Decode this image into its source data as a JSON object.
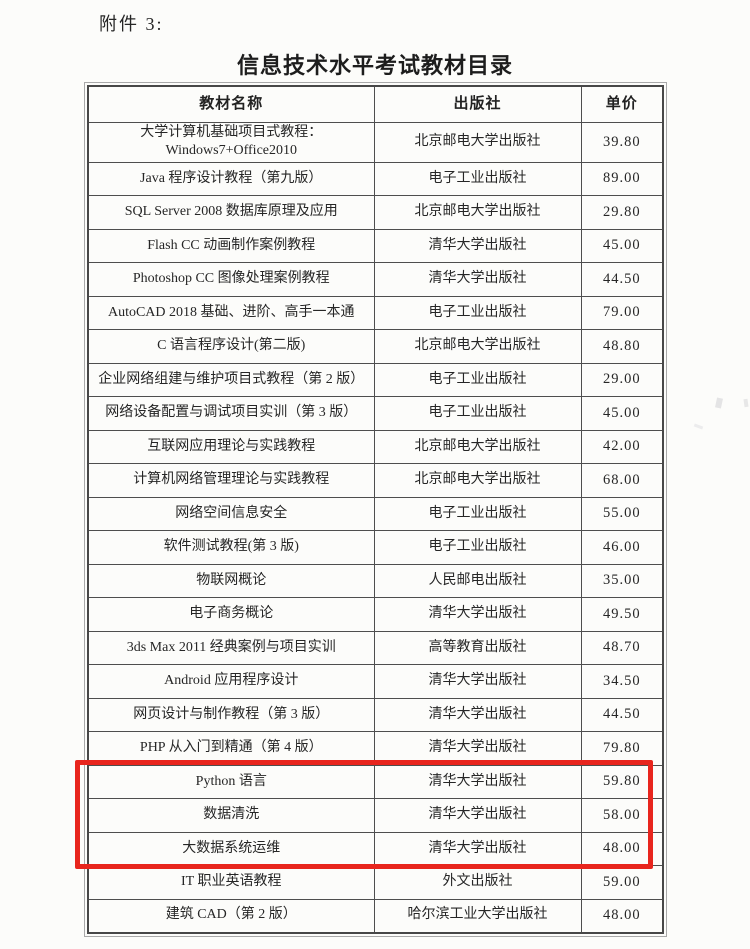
{
  "document": {
    "attachment_label": "附件 3:",
    "title": "信息技术水平考试教材目录"
  },
  "table": {
    "columns": [
      "教材名称",
      "出版社",
      "单价"
    ],
    "rows": [
      {
        "name": "大学计算机基础项目式教程：\nWindows7+Office2010",
        "publisher": "北京邮电大学出版社",
        "price": "39.80"
      },
      {
        "name": "Java 程序设计教程（第九版）",
        "publisher": "电子工业出版社",
        "price": "89.00"
      },
      {
        "name": "SQL Server 2008 数据库原理及应用",
        "publisher": "北京邮电大学出版社",
        "price": "29.80"
      },
      {
        "name": "Flash CC 动画制作案例教程",
        "publisher": "清华大学出版社",
        "price": "45.00"
      },
      {
        "name": "Photoshop CC 图像处理案例教程",
        "publisher": "清华大学出版社",
        "price": "44.50"
      },
      {
        "name": "AutoCAD 2018 基础、进阶、高手一本通",
        "publisher": "电子工业出版社",
        "price": "79.00"
      },
      {
        "name": "C 语言程序设计(第二版)",
        "publisher": "北京邮电大学出版社",
        "price": "48.80"
      },
      {
        "name": "企业网络组建与维护项目式教程（第 2 版）",
        "publisher": "电子工业出版社",
        "price": "29.00"
      },
      {
        "name": "网络设备配置与调试项目实训（第 3 版）",
        "publisher": "电子工业出版社",
        "price": "45.00"
      },
      {
        "name": "互联网应用理论与实践教程",
        "publisher": "北京邮电大学出版社",
        "price": "42.00"
      },
      {
        "name": "计算机网络管理理论与实践教程",
        "publisher": "北京邮电大学出版社",
        "price": "68.00"
      },
      {
        "name": "网络空间信息安全",
        "publisher": "电子工业出版社",
        "price": "55.00"
      },
      {
        "name": "软件测试教程(第 3 版)",
        "publisher": "电子工业出版社",
        "price": "46.00"
      },
      {
        "name": "物联网概论",
        "publisher": "人民邮电出版社",
        "price": "35.00"
      },
      {
        "name": "电子商务概论",
        "publisher": "清华大学出版社",
        "price": "49.50"
      },
      {
        "name": "3ds Max 2011 经典案例与项目实训",
        "publisher": "高等教育出版社",
        "price": "48.70"
      },
      {
        "name": "Android 应用程序设计",
        "publisher": "清华大学出版社",
        "price": "34.50"
      },
      {
        "name": "网页设计与制作教程（第 3 版）",
        "publisher": "清华大学出版社",
        "price": "44.50"
      },
      {
        "name": "PHP 从入门到精通（第 4 版）",
        "publisher": "清华大学出版社",
        "price": "79.80"
      },
      {
        "name": "Python 语言",
        "publisher": "清华大学出版社",
        "price": "59.80"
      },
      {
        "name": "数据清洗",
        "publisher": "清华大学出版社",
        "price": "58.00"
      },
      {
        "name": "大数据系统运维",
        "publisher": "清华大学出版社",
        "price": "48.00"
      },
      {
        "name": "IT 职业英语教程",
        "publisher": "外文出版社",
        "price": "59.00"
      },
      {
        "name": "建筑 CAD（第 2 版）",
        "publisher": "哈尔滨工业大学出版社",
        "price": "48.00"
      }
    ]
  },
  "highlight": {
    "color": "#e8251d",
    "highlighted_rows": [
      "Python 语言",
      "数据清洗",
      "大数据系统运维"
    ]
  }
}
